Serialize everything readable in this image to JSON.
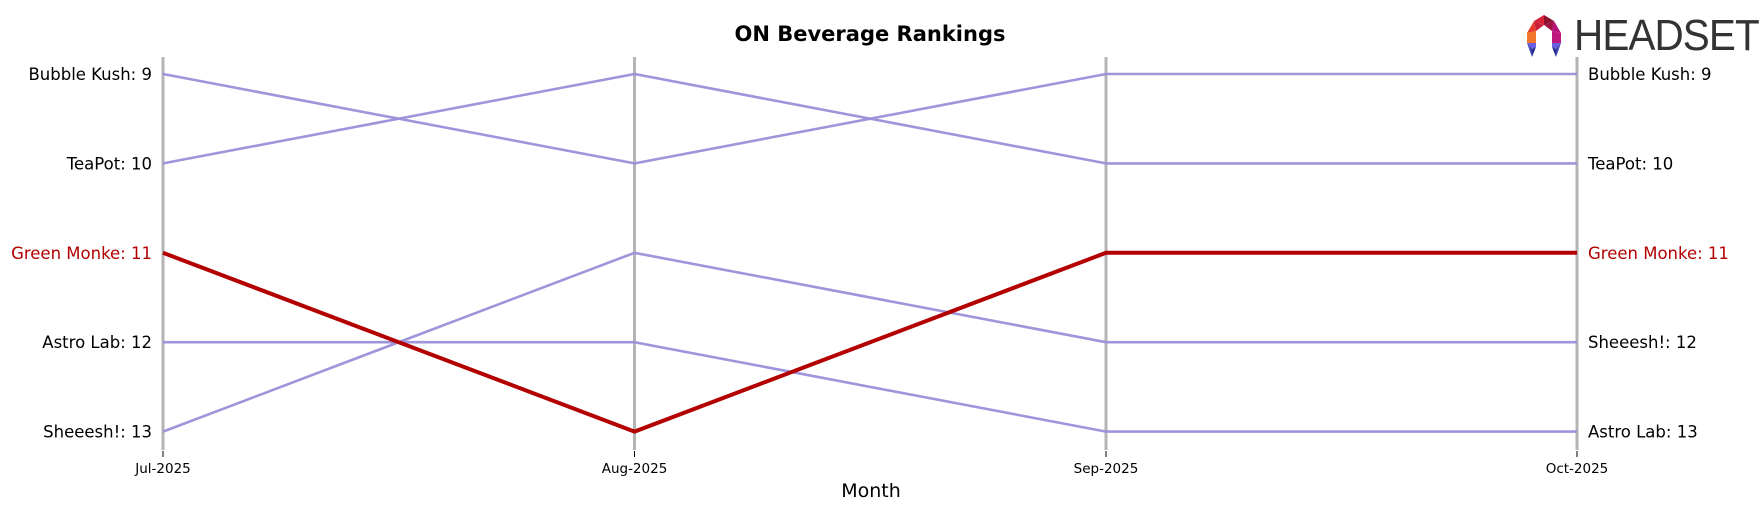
{
  "title": "ON Beverage Rankings",
  "logo": {
    "text": "HEADSET",
    "icon": "headset-logo-icon"
  },
  "colors": {
    "highlight": "#b30000",
    "other": "#9a8fd9",
    "axis": "#b4b4b4",
    "text": "#000000"
  },
  "chart_data": {
    "type": "line",
    "subtype": "bump",
    "title": "ON Beverage Rankings",
    "xlabel": "Month",
    "ylabel": "",
    "categories": [
      "Jul-2025",
      "Aug-2025",
      "Sep-2025",
      "Oct-2025"
    ],
    "y_axis": {
      "inverted": true,
      "range": [
        9,
        13
      ]
    },
    "highlight": "Green Monke",
    "series": [
      {
        "name": "Bubble Kush",
        "values": [
          9,
          10,
          9,
          9
        ]
      },
      {
        "name": "TeaPot",
        "values": [
          10,
          9,
          10,
          10
        ]
      },
      {
        "name": "Green Monke",
        "values": [
          11,
          13,
          11,
          11
        ]
      },
      {
        "name": "Astro Lab",
        "values": [
          12,
          12,
          13,
          13
        ]
      },
      {
        "name": "Sheeesh!",
        "values": [
          13,
          11,
          12,
          12
        ]
      }
    ],
    "left_labels": [
      {
        "text": "Bubble Kush: 9",
        "rank": 9,
        "highlight": false
      },
      {
        "text": "TeaPot: 10",
        "rank": 10,
        "highlight": false
      },
      {
        "text": "Green Monke: 11",
        "rank": 11,
        "highlight": true
      },
      {
        "text": "Astro Lab: 12",
        "rank": 12,
        "highlight": false
      },
      {
        "text": "Sheeesh!: 13",
        "rank": 13,
        "highlight": false
      }
    ],
    "right_labels": [
      {
        "text": "Bubble Kush: 9",
        "rank": 9,
        "highlight": false
      },
      {
        "text": "TeaPot: 10",
        "rank": 10,
        "highlight": false
      },
      {
        "text": "Green Monke: 11",
        "rank": 11,
        "highlight": true
      },
      {
        "text": "Sheeesh!: 12",
        "rank": 12,
        "highlight": false
      },
      {
        "text": "Astro Lab: 13",
        "rank": 13,
        "highlight": false
      }
    ],
    "grid": false,
    "legend": "none"
  }
}
